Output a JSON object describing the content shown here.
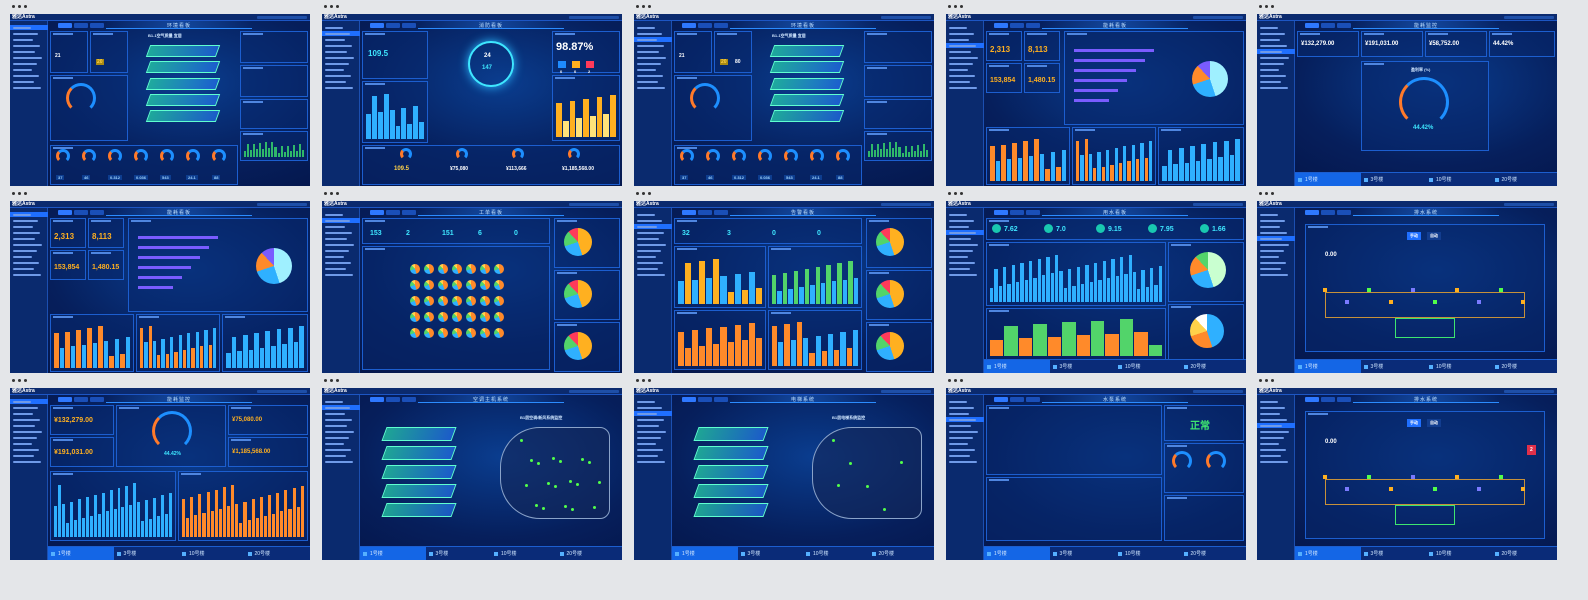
{
  "brand": "雅达Astra",
  "screens": [
    {
      "key": "env-a",
      "title": "环境看板",
      "subtitle": "B1-1空气质量 宜居",
      "values": [
        "21",
        "20"
      ],
      "readouts": [
        "37",
        "46",
        "0.312",
        "0.036",
        "543",
        "24.1",
        "88"
      ]
    },
    {
      "key": "fire-a",
      "title": "消防看板",
      "percent": "98.87%",
      "summary": [
        "109.5",
        "¥75,080",
        "¥113,666",
        "¥1,185,568.00"
      ],
      "counts": [
        "0",
        "0",
        "2"
      ],
      "center": [
        "24",
        "147"
      ]
    },
    {
      "key": "env-b",
      "title": "环境看板",
      "subtitle": "B1-1空气质量 宜居",
      "values": [
        "21",
        "20",
        "80"
      ],
      "readouts": [
        "37",
        "46",
        "0.312",
        "0.036",
        "543",
        "24.1",
        "88"
      ]
    },
    {
      "key": "energy-a",
      "title": "能耗看板",
      "values": [
        "2,313",
        "8,113",
        "153,854",
        "1,480.15"
      ]
    },
    {
      "key": "energy-b",
      "title": "能耗监控",
      "values": [
        "¥132,279.00",
        "¥191,031.00",
        "¥58,752.00",
        "44.42%"
      ],
      "gauge_label": "盈利率 (%)",
      "gauge_value": "44.42%"
    },
    {
      "key": "energy-c",
      "title": "能耗看板",
      "values": [
        "2,313",
        "8,113",
        "153,854",
        "1,480.15"
      ]
    },
    {
      "key": "ticket",
      "title": "工单看板",
      "counts": [
        "153",
        "2",
        "151",
        "6",
        "0"
      ]
    },
    {
      "key": "alarm",
      "title": "告警看板",
      "counts": [
        "32",
        "3",
        "0",
        "0"
      ]
    },
    {
      "key": "water",
      "title": "用水看板",
      "values": [
        "7.62",
        "7.0",
        "9.15",
        "7.95",
        "1.66"
      ]
    },
    {
      "key": "drain-a",
      "title": "排水系统",
      "values": [
        "0.00"
      ],
      "buttons": [
        "手动",
        "自动"
      ]
    },
    {
      "key": "energy-d",
      "title": "能耗监控",
      "values": [
        "¥132,279.00",
        "¥75,080.00",
        "¥191,031.00",
        "¥1,185,568.00"
      ],
      "gauge_value": "44.42%"
    },
    {
      "key": "hvac",
      "title": "空调主机系统",
      "subtitle": "B1层空调/新风系统监控"
    },
    {
      "key": "elevator",
      "title": "电梯系统",
      "subtitle": "B1层电梯系统监控"
    },
    {
      "key": "pump",
      "title": "水泵系统",
      "status": "正常"
    },
    {
      "key": "drain-b",
      "title": "排水系统",
      "values": [
        "0.00",
        "2"
      ],
      "buttons": [
        "手动",
        "自动"
      ]
    }
  ],
  "bottom_tabs": [
    "1号楼",
    "3号楼",
    "10号楼",
    "20号楼"
  ],
  "colors": {
    "accent": "#1f6fff",
    "cyan": "#3ee6ff",
    "orange": "#ff8a2a",
    "gold": "#ffd24a",
    "green": "#52ff4a"
  }
}
